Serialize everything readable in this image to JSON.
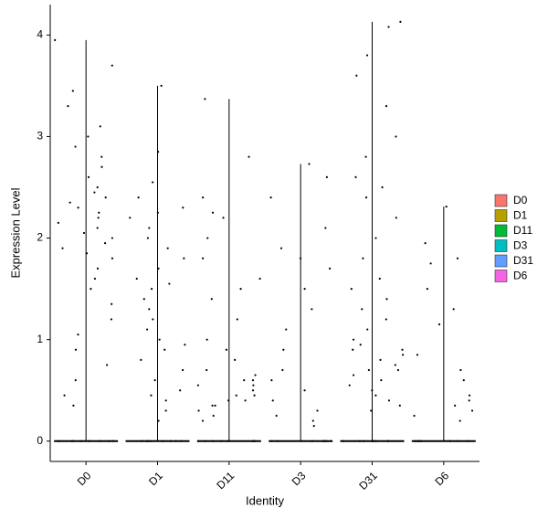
{
  "chart_data": {
    "type": "strip",
    "x_label": "Identity",
    "y_label": "Expression Level",
    "categories": [
      "D0",
      "D1",
      "D11",
      "D3",
      "D31",
      "D6"
    ],
    "ylim": [
      -0.2,
      4.3
    ],
    "yticks": [
      0,
      1,
      2,
      3,
      4
    ],
    "legend": "right",
    "series": [
      {
        "name": "D0",
        "color": "#F8766D",
        "values": [
          3.95,
          3.7,
          3.45,
          3.3,
          3.1,
          3.0,
          2.9,
          2.8,
          2.7,
          2.6,
          2.5,
          2.45,
          2.4,
          2.35,
          2.3,
          2.25,
          2.2,
          2.15,
          2.1,
          2.05,
          2.0,
          1.95,
          1.9,
          1.85,
          1.8,
          1.7,
          1.6,
          1.5,
          1.35,
          1.2,
          1.05,
          0.9,
          0.75,
          0.6,
          0.45,
          0.35,
          0,
          0,
          0,
          0,
          0,
          0,
          0,
          0
        ]
      },
      {
        "name": "D1",
        "color": "#B79F00",
        "values": [
          3.5,
          2.85,
          2.55,
          2.4,
          2.3,
          2.2,
          2.1,
          2.0,
          1.9,
          1.8,
          1.7,
          1.6,
          1.5,
          1.4,
          1.3,
          1.2,
          1.1,
          1.0,
          0.9,
          0.8,
          0.7,
          0.6,
          0.5,
          0.4,
          0.3,
          0.2,
          2.25,
          1.55,
          0.95,
          0.45,
          0,
          0,
          0,
          0,
          0,
          0,
          0,
          0
        ]
      },
      {
        "name": "D11",
        "color": "#00BA38",
        "values": [
          3.37,
          2.8,
          2.4,
          2.2,
          2.0,
          1.8,
          1.6,
          1.4,
          1.2,
          1.0,
          0.9,
          0.8,
          0.7,
          0.65,
          0.6,
          0.55,
          0.5,
          0.45,
          0.4,
          0.35,
          0.3,
          0.25,
          0.2,
          0.55,
          0.45,
          0.35,
          0.6,
          0.4,
          1.5,
          2.25,
          0,
          0,
          0,
          0,
          0,
          0,
          0,
          0
        ]
      },
      {
        "name": "D3",
        "color": "#00BFC4",
        "values": [
          2.73,
          2.6,
          2.4,
          2.1,
          1.9,
          1.7,
          1.5,
          1.3,
          1.1,
          0.9,
          0.7,
          0.5,
          0.4,
          0.3,
          0.2,
          0.15,
          1.8,
          0.6,
          0.25,
          0,
          0,
          0,
          0,
          0,
          0,
          0,
          0
        ]
      },
      {
        "name": "D31",
        "color": "#619CFF",
        "values": [
          4.13,
          4.08,
          3.8,
          3.6,
          3.3,
          3.0,
          2.8,
          2.6,
          2.4,
          2.2,
          2.0,
          1.8,
          1.6,
          1.4,
          1.3,
          1.2,
          1.1,
          1.0,
          0.95,
          0.9,
          0.85,
          0.8,
          0.75,
          0.7,
          0.65,
          0.6,
          0.55,
          0.5,
          0.45,
          0.4,
          0.35,
          0.3,
          0.9,
          0.7,
          1.5,
          2.5,
          0,
          0,
          0,
          0,
          0,
          0,
          0,
          0
        ]
      },
      {
        "name": "D6",
        "color": "#F564E3",
        "values": [
          2.31,
          1.95,
          1.8,
          1.75,
          1.5,
          1.3,
          1.15,
          0.85,
          0.7,
          0.6,
          0.45,
          0.4,
          0.35,
          0.3,
          0.25,
          0.2,
          0,
          0,
          0,
          0,
          0,
          0,
          0,
          0
        ]
      }
    ]
  }
}
